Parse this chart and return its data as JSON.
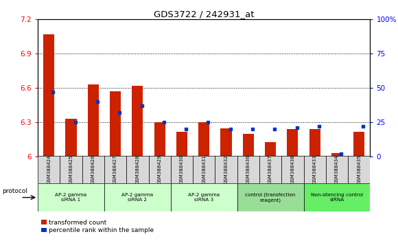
{
  "title": "GDS3722 / 242931_at",
  "samples": [
    "GSM388424",
    "GSM388425",
    "GSM388426",
    "GSM388427",
    "GSM388428",
    "GSM388429",
    "GSM388430",
    "GSM388431",
    "GSM388432",
    "GSM388436",
    "GSM388437",
    "GSM388438",
    "GSM388433",
    "GSM388434",
    "GSM388435"
  ],
  "red_values": [
    7.07,
    6.33,
    6.63,
    6.57,
    6.62,
    6.3,
    6.22,
    6.3,
    6.25,
    6.2,
    6.13,
    6.24,
    6.24,
    6.03,
    6.22
  ],
  "blue_values_pct": [
    47,
    25,
    40,
    32,
    37,
    25,
    20,
    25,
    20,
    20,
    20,
    21,
    22,
    2,
    22
  ],
  "ylim_left": [
    6.0,
    7.2
  ],
  "ylim_right": [
    0,
    100
  ],
  "yticks_left": [
    6.0,
    6.3,
    6.6,
    6.9,
    7.2
  ],
  "yticks_right": [
    0,
    25,
    50,
    75,
    100
  ],
  "ytick_labels_left": [
    "6",
    "6.3",
    "6.6",
    "6.9",
    "7.2"
  ],
  "ytick_labels_right": [
    "0",
    "25",
    "50",
    "75",
    "100%"
  ],
  "groups": [
    {
      "label": "AP-2 gamma\nsiRNA 1",
      "indices": [
        0,
        1,
        2
      ],
      "color": "#ccffcc"
    },
    {
      "label": "AP-2 gamma\nsiRNA 2",
      "indices": [
        3,
        4,
        5
      ],
      "color": "#ccffcc"
    },
    {
      "label": "AP-2 gamma\nsiRNA 3",
      "indices": [
        6,
        7,
        8
      ],
      "color": "#ccffcc"
    },
    {
      "label": "control (transfection\nreagent)",
      "indices": [
        9,
        10,
        11
      ],
      "color": "#99dd99"
    },
    {
      "label": "Non-silencing control\nsiRNA",
      "indices": [
        12,
        13,
        14
      ],
      "color": "#66ee66"
    }
  ],
  "red_color": "#cc2200",
  "blue_color": "#0033cc",
  "bar_width": 0.5,
  "baseline": 6.0,
  "grid_yticks": [
    6.3,
    6.6,
    6.9
  ],
  "sample_bg": "#d8d8d8",
  "protocol_label": "protocol",
  "legend_red": "transformed count",
  "legend_blue": "percentile rank within the sample"
}
